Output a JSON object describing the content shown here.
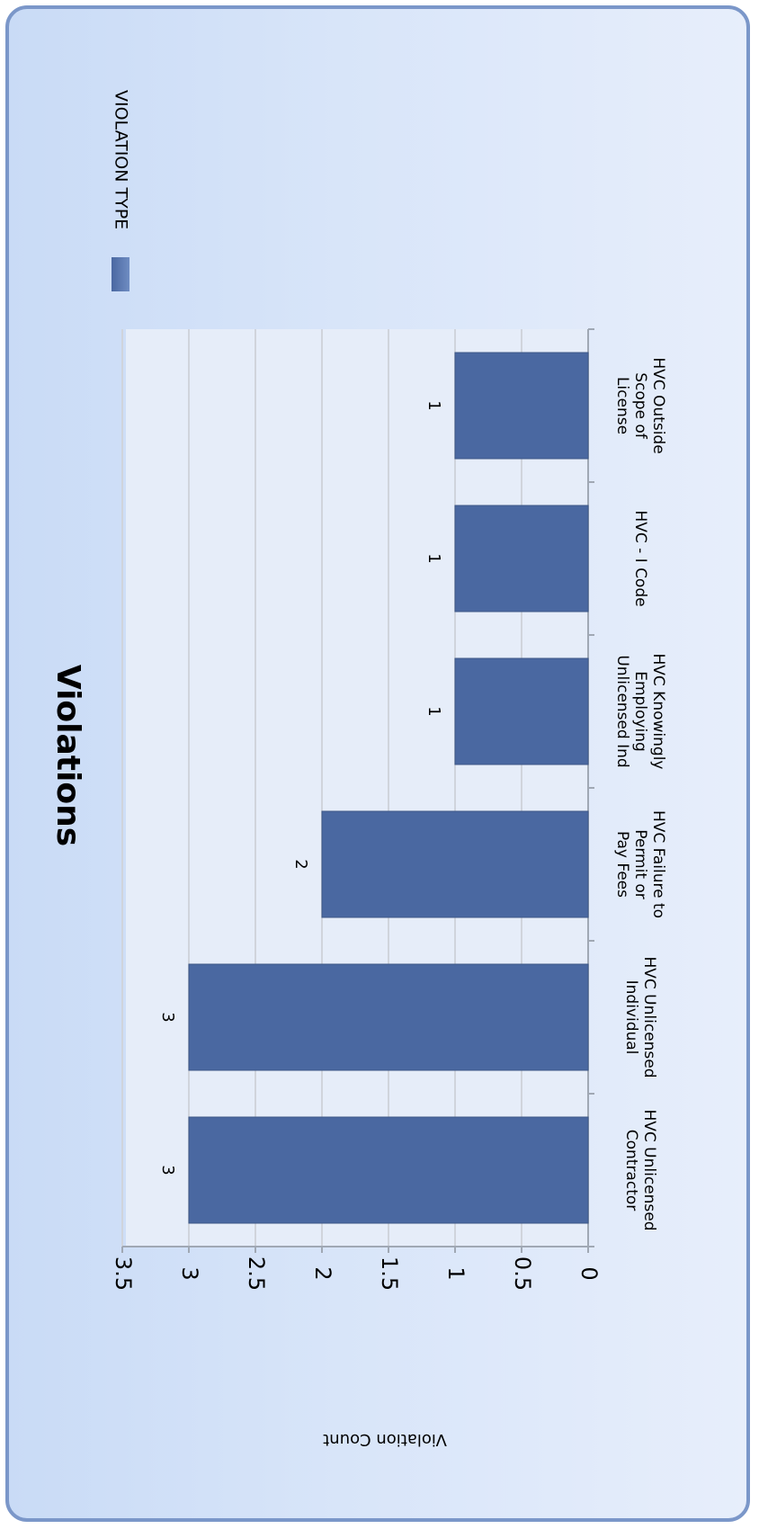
{
  "chart_data": {
    "type": "bar",
    "orientation": "rotated-90-cw",
    "title": "Violations",
    "xlabel": "",
    "ylabel": "Violation Count",
    "ylim": [
      0,
      3.5
    ],
    "yticks": [
      "0",
      "0.5",
      "1",
      "1.5",
      "2",
      "2.5",
      "3",
      "3.5"
    ],
    "categories": [
      [
        "HVC Unlicensed",
        "Contractor"
      ],
      [
        "HVC Unlicensed",
        "Individual"
      ],
      [
        "HVC Failure to",
        "Permit or",
        "Pay Fees"
      ],
      [
        "HVC Knowingly",
        "Employing",
        "Unlicensed Ind"
      ],
      [
        "HVC - I Code"
      ],
      [
        "HVC Outside",
        "Scope of",
        "License"
      ]
    ],
    "series": [
      {
        "name": "VIOLATION TYPE",
        "values": [
          3,
          3,
          2,
          1,
          1,
          1
        ]
      }
    ],
    "data_labels": [
      "3",
      "3",
      "2",
      "1",
      "1",
      "1"
    ],
    "grid": true,
    "legend": "top-right",
    "colors": {
      "bar": "#4a68a1",
      "plot_bg": "#e6edf9",
      "grid": "#d0d4dc",
      "axis": "#a0a8b4"
    }
  }
}
